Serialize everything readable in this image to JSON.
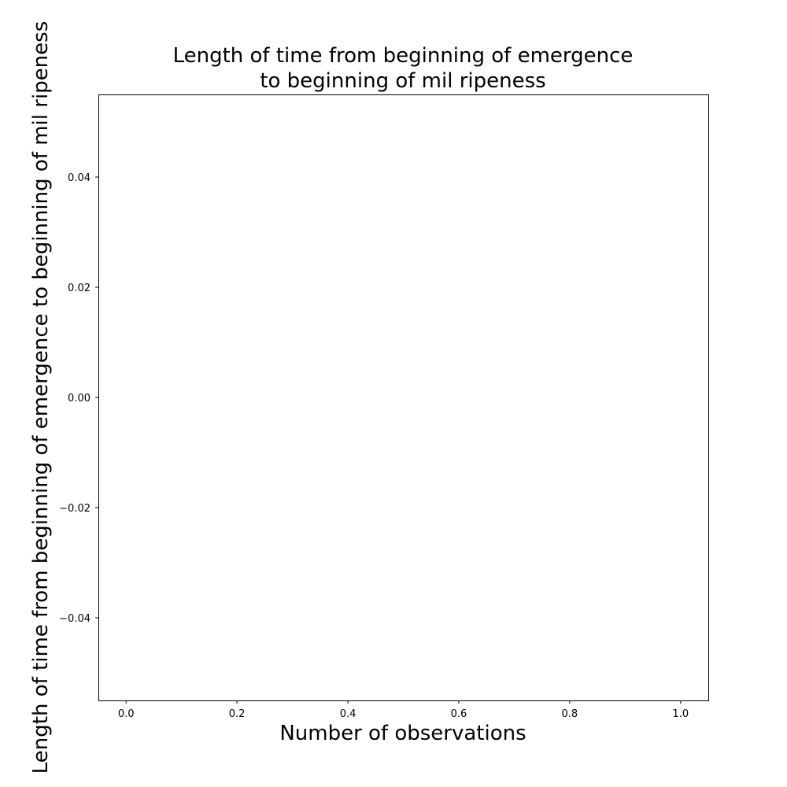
{
  "chart_data": {
    "type": "scatter",
    "title_lines": [
      "Length of time from beginning of emergence",
      "to beginning of mil ripeness"
    ],
    "xlabel": "Number of observations",
    "ylabel": "Length of time from beginning of emergence to beginning of mil ripeness",
    "xlim": [
      -0.05,
      1.05
    ],
    "ylim": [
      -0.055,
      0.055
    ],
    "x_ticks": [
      0.0,
      0.2,
      0.4,
      0.6,
      0.8,
      1.0
    ],
    "x_tick_labels": [
      "0.0",
      "0.2",
      "0.4",
      "0.6",
      "0.8",
      "1.0"
    ],
    "y_ticks": [
      -0.04,
      -0.02,
      0.0,
      0.02,
      0.04
    ],
    "y_tick_labels": [
      "−0.04",
      "−0.02",
      "0.00",
      "0.02",
      "0.04"
    ],
    "grid": false,
    "series": [],
    "colors": {
      "axis": "#000000",
      "background": "#ffffff"
    }
  }
}
